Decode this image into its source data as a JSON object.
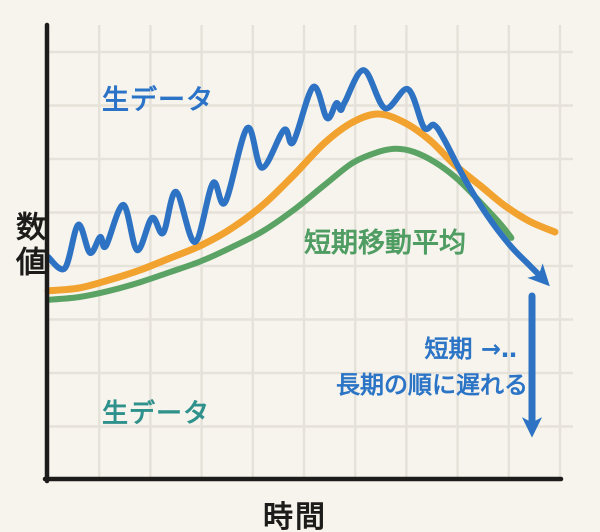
{
  "canvas": {
    "background": "#f7f4ed",
    "grid_color": "#e5e2da",
    "axis_color": "#1d1c1a"
  },
  "axes": {
    "y_label": "数値",
    "x_label": "時間"
  },
  "labels": {
    "raw_top": {
      "text": "生データ",
      "color": "#2b73c6"
    },
    "ma_green": {
      "text": "短期移動平均",
      "color": "#4f9d62"
    },
    "raw_bottom": {
      "text": "生データ",
      "color": "#2f918c"
    },
    "lag_line1": {
      "text": "短期 →‥",
      "color": "#2b74c6"
    },
    "lag_line2": {
      "text": "長期の順に遅れる",
      "color": "#2b74c6"
    }
  },
  "chart_data": {
    "type": "line",
    "x_axis": {
      "label": "時間",
      "range": [
        0,
        100
      ],
      "tick_labels": "none"
    },
    "y_axis": {
      "label": "数値",
      "range": [
        0,
        100
      ],
      "tick_labels": "none"
    },
    "grid": true,
    "legend": "none (inline colored text labels)",
    "series": [
      {
        "id": "raw-data",
        "label": "生データ",
        "color": "#2e73c3",
        "stroke_width": 6,
        "end_arrow": true,
        "points": [
          [
            0,
            48.7
          ],
          [
            3.3,
            46.2
          ],
          [
            5.9,
            55.8
          ],
          [
            8.2,
            49.6
          ],
          [
            10.2,
            53.1
          ],
          [
            11.3,
            51.1
          ],
          [
            14.7,
            60.2
          ],
          [
            17.4,
            50.2
          ],
          [
            20.3,
            57.3
          ],
          [
            22.5,
            54.0
          ],
          [
            25.0,
            63.1
          ],
          [
            28.7,
            52.0
          ],
          [
            32.2,
            65.0
          ],
          [
            34.6,
            60.8
          ],
          [
            38.9,
            77.2
          ],
          [
            41.8,
            68.4
          ],
          [
            46.1,
            76.8
          ],
          [
            47.9,
            74.1
          ],
          [
            51.8,
            86.3
          ],
          [
            54.5,
            79.4
          ],
          [
            56.3,
            82.7
          ],
          [
            57.2,
            81.2
          ],
          [
            58.0,
            83.0
          ],
          [
            61.7,
            90.0
          ],
          [
            65.8,
            81.6
          ],
          [
            70.3,
            85.8
          ],
          [
            73.4,
            77.4
          ],
          [
            75.4,
            77.9
          ],
          [
            77.3,
            74.8
          ],
          [
            81.5,
            65.7
          ],
          [
            85.7,
            58.0
          ],
          [
            90.2,
            51.3
          ],
          [
            93.8,
            47.1
          ],
          [
            96.1,
            44.5
          ]
        ]
      },
      {
        "id": "moving-average-orange",
        "label": null,
        "color": "#f1a22f",
        "stroke_width": 7,
        "end_arrow": false,
        "points": [
          [
            0,
            41.2
          ],
          [
            6,
            41.8
          ],
          [
            12,
            43.6
          ],
          [
            18,
            45.8
          ],
          [
            24,
            48.5
          ],
          [
            30,
            51.3
          ],
          [
            36,
            55.1
          ],
          [
            42,
            60.2
          ],
          [
            48,
            66.8
          ],
          [
            54,
            73.9
          ],
          [
            59.5,
            78.5
          ],
          [
            64.5,
            80.3
          ],
          [
            69.5,
            78.5
          ],
          [
            74.5,
            74.6
          ],
          [
            79.5,
            69.0
          ],
          [
            84.5,
            64.4
          ],
          [
            89,
            60.2
          ],
          [
            94,
            56.6
          ],
          [
            99,
            54.2
          ]
        ]
      },
      {
        "id": "moving-average-green",
        "label": "短期移動平均",
        "color": "#5ba364",
        "stroke_width": 6,
        "end_arrow": false,
        "points": [
          [
            0,
            39.2
          ],
          [
            6,
            39.8
          ],
          [
            12,
            41.2
          ],
          [
            18,
            43.1
          ],
          [
            24,
            45.4
          ],
          [
            30,
            47.8
          ],
          [
            36,
            50.9
          ],
          [
            42,
            54.4
          ],
          [
            48,
            59.1
          ],
          [
            54,
            64.6
          ],
          [
            59.5,
            69.5
          ],
          [
            64.5,
            71.9
          ],
          [
            68,
            72.6
          ],
          [
            71.5,
            71.9
          ],
          [
            75.5,
            69.7
          ],
          [
            79.5,
            66.4
          ],
          [
            82.5,
            63.1
          ],
          [
            85.5,
            59.5
          ],
          [
            88.5,
            55.8
          ],
          [
            90.5,
            52.9
          ]
        ]
      }
    ],
    "arrows": {
      "raw_line_end": {
        "type": "arrowhead",
        "direction": "down-right",
        "color": "#2e73c3"
      },
      "lag_arrow": {
        "type": "straight",
        "direction": "down",
        "color": "#2e73c3"
      }
    }
  }
}
